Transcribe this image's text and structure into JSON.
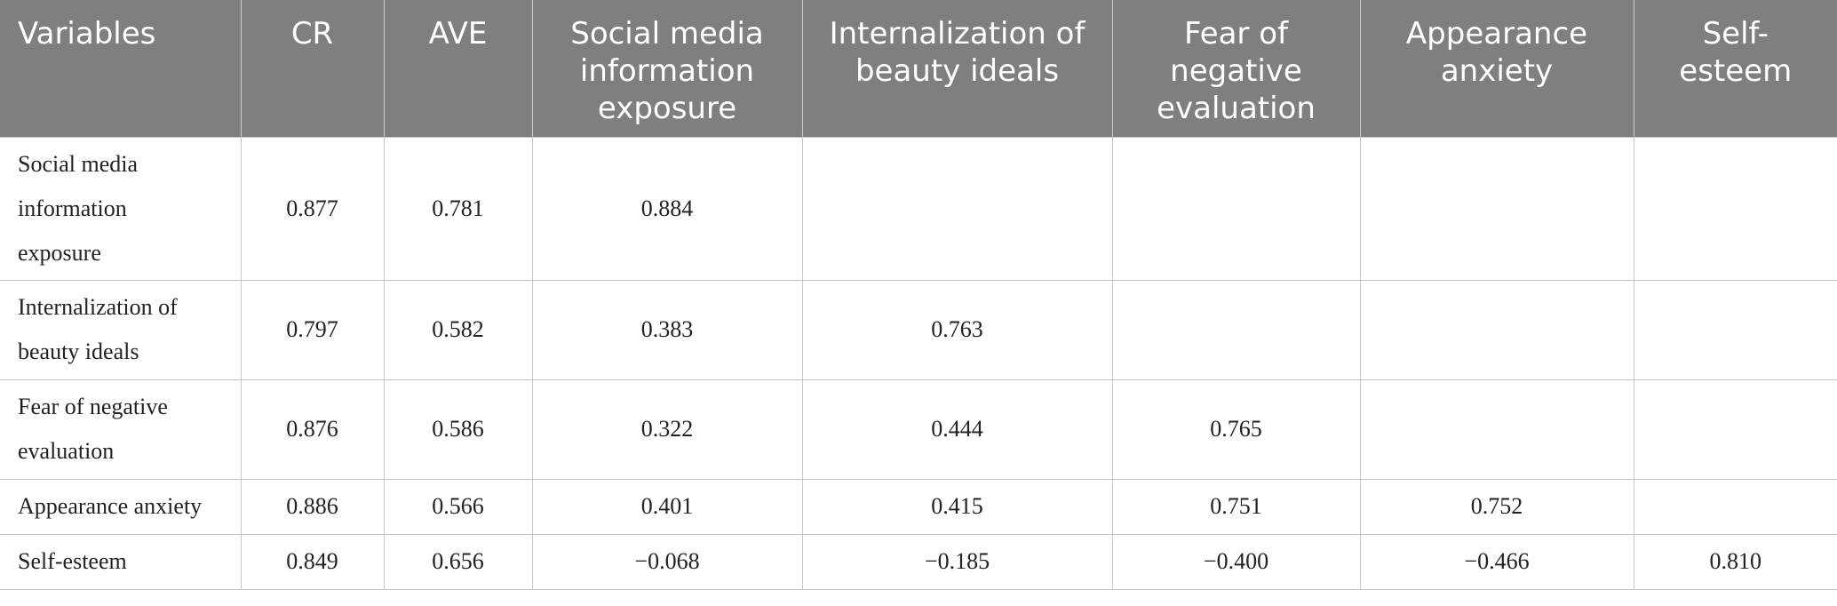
{
  "table": {
    "headers": [
      "Variables",
      "CR",
      "AVE",
      "Social media information exposure",
      "Internalization of beauty ideals",
      "Fear of negative evaluation",
      "Appearance anxiety",
      "Self-esteem"
    ],
    "rows": [
      [
        "Social media information exposure",
        "0.877",
        "0.781",
        "0.884",
        "",
        "",
        "",
        ""
      ],
      [
        "Internalization of beauty ideals",
        "0.797",
        "0.582",
        "0.383",
        "0.763",
        "",
        "",
        ""
      ],
      [
        "Fear of negative evaluation",
        "0.876",
        "0.586",
        "0.322",
        "0.444",
        "0.765",
        "",
        ""
      ],
      [
        "Appearance anxiety",
        "0.886",
        "0.566",
        "0.401",
        "0.415",
        "0.751",
        "0.752",
        ""
      ],
      [
        "Self-esteem",
        "0.849",
        "0.656",
        "−0.068",
        "−0.185",
        "−0.400",
        "−0.466",
        "0.810"
      ]
    ]
  },
  "colors": {
    "header_background": "#7f7f7f",
    "header_text": "#ffffff",
    "cell_text": "#222222",
    "grid_line": "#c4c4c4"
  }
}
